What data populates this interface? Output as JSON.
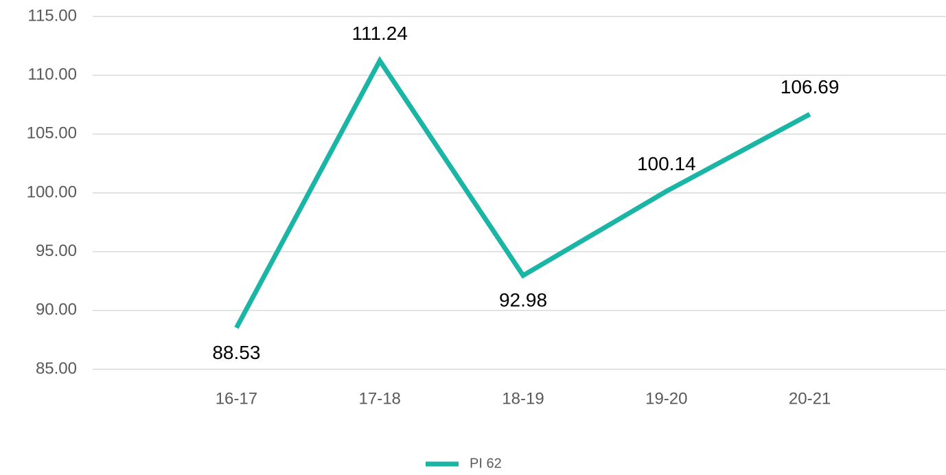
{
  "chart_data": {
    "type": "line",
    "categories": [
      "16-17",
      "17-18",
      "18-19",
      "19-20",
      "20-21"
    ],
    "series": [
      {
        "name": "PI 62",
        "color": "#1ab5a5",
        "values": [
          88.53,
          111.24,
          92.98,
          100.14,
          106.69
        ]
      }
    ],
    "ylim": [
      85,
      115
    ],
    "yticks": [
      {
        "value": 85,
        "label": "85.00"
      },
      {
        "value": 90,
        "label": "90.00"
      },
      {
        "value": 95,
        "label": "95.00"
      },
      {
        "value": 100,
        "label": "100.00"
      },
      {
        "value": 105,
        "label": "105.00"
      },
      {
        "value": 110,
        "label": "110.00"
      },
      {
        "value": 115,
        "label": "115.00"
      }
    ],
    "grid": true,
    "legend": "bottom"
  }
}
